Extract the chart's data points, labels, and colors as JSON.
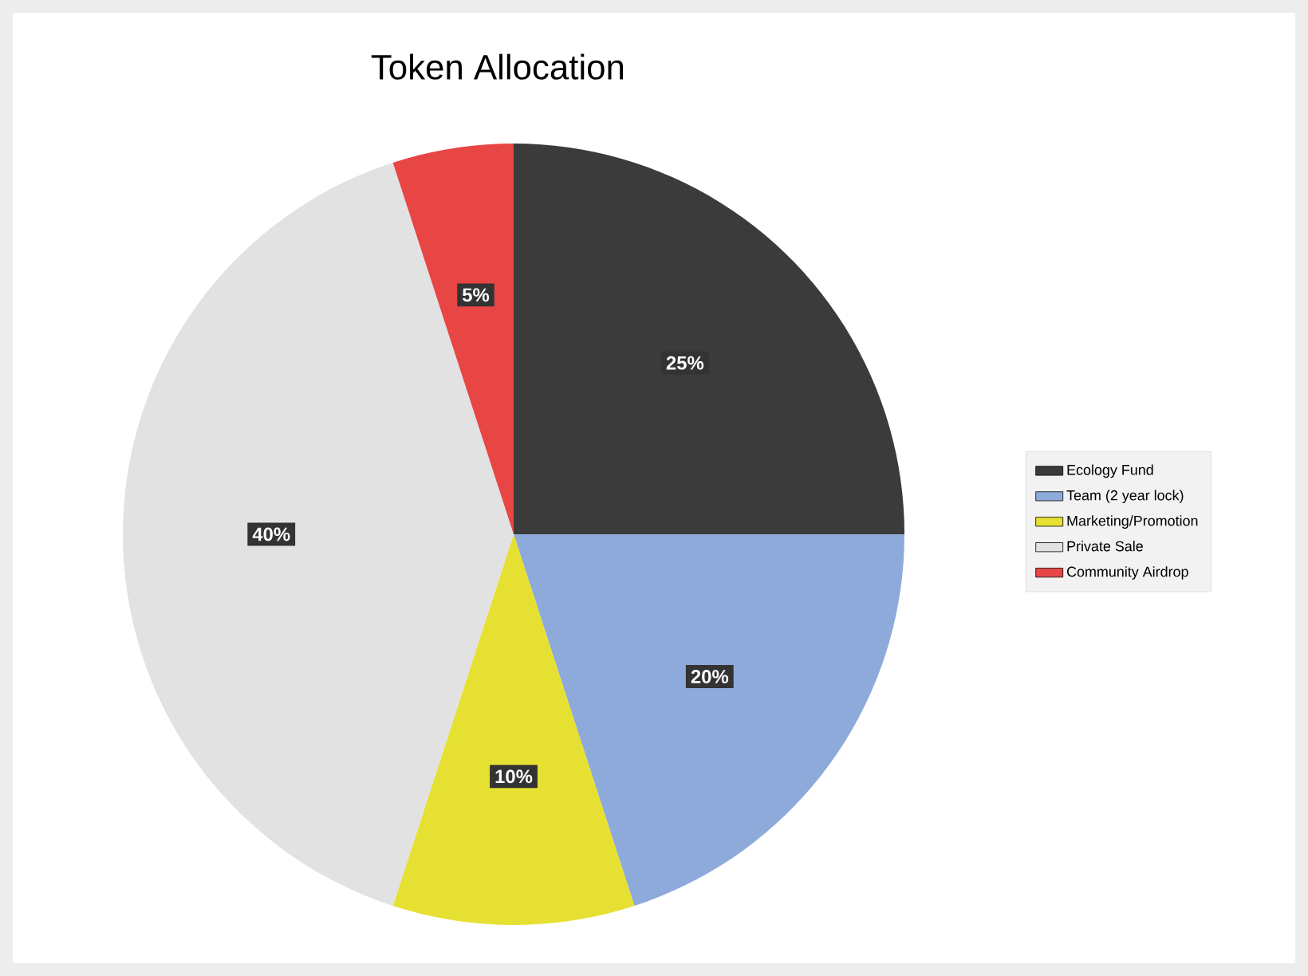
{
  "chart_data": {
    "type": "pie",
    "title": "Token Allocation",
    "categories": [
      "Ecology Fund",
      "Team (2 year lock)",
      "Marketing/Promotion",
      "Private Sale",
      "Community Airdrop"
    ],
    "values": [
      25,
      20,
      10,
      40,
      5
    ],
    "colors": [
      "#3b3b3b",
      "#8eaadb",
      "#e6e032",
      "#e2e2e2",
      "#e84545"
    ],
    "value_labels": [
      "25%",
      "20%",
      "10%",
      "40%",
      "5%"
    ],
    "legend": "right"
  }
}
